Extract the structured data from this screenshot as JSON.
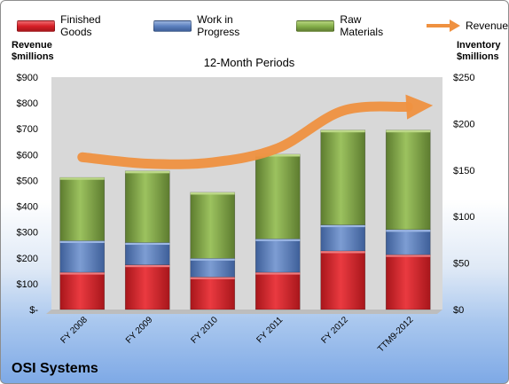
{
  "legend": {
    "finished_goods": "Finished Goods",
    "work_in_progress": "Work in Progress",
    "raw_materials": "Raw Materials",
    "revenue": "Revenue"
  },
  "left_axis_title": [
    "Revenue",
    "$millions"
  ],
  "right_axis_title": [
    "Inventory",
    "$millions"
  ],
  "plot_title": "12-Month Periods",
  "company_name": "OSI Systems",
  "colors": {
    "finished_goods": "#d61f26",
    "work_in_progress": "#5b80bf",
    "raw_materials": "#86b04a",
    "revenue": "#ef9140",
    "plot_background": "#d8d8d8"
  },
  "chart_data": {
    "type": "bar",
    "stacked": true,
    "categories": [
      "FY 2008",
      "FY 2009",
      "FY 2010",
      "FY 2011",
      "FY 2012",
      "TTM9-2012"
    ],
    "series": [
      {
        "name": "Finished Goods",
        "axis": "right",
        "values": [
          40,
          48,
          35,
          40,
          63,
          59
        ]
      },
      {
        "name": "Work in Progress",
        "axis": "right",
        "values": [
          34,
          24,
          20,
          36,
          28,
          27
        ]
      },
      {
        "name": "Raw Materials",
        "axis": "right",
        "values": [
          68,
          77,
          71,
          91,
          102,
          107
        ]
      },
      {
        "name": "Revenue",
        "axis": "left",
        "type": "line",
        "values": [
          590,
          565,
          570,
          625,
          770,
          785
        ]
      }
    ],
    "left_axis": {
      "min": 0,
      "max": 900,
      "step": 100,
      "tick_labels": [
        "$-",
        "$100",
        "$200",
        "$300",
        "$400",
        "$500",
        "$600",
        "$700",
        "$800",
        "$900"
      ]
    },
    "right_axis": {
      "min": 0,
      "max": 250,
      "step": 50,
      "tick_labels": [
        "$0",
        "$50",
        "$100",
        "$150",
        "$200",
        "$250"
      ]
    },
    "grid": false,
    "legend_position": "top"
  }
}
